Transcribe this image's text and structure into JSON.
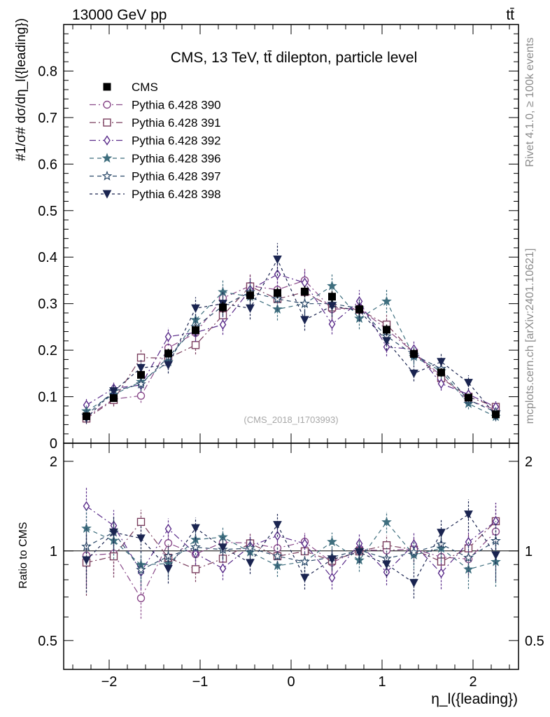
{
  "header": {
    "top_left": "13000 GeV pp",
    "top_right": "tt̄",
    "side_rivet": "Rivet 4.1.0, ≥ 100k events",
    "side_site": "mcplots.cern.ch [arXiv:2401.10621]"
  },
  "chart_data": {
    "type": "line",
    "title": "CMS, 13 TeV, tt̄ dilepton, particle level",
    "analysis_tag": "(CMS_2018_I1703993)",
    "xlabel": "η_l({leading})",
    "ylabel": "#1/σ# dσ/dη_l({leading})",
    "ratio_ylabel": "Ratio to CMS",
    "xlim": [
      -2.5,
      2.5
    ],
    "ylim": [
      0,
      0.9
    ],
    "ratio_ylim": [
      0.4,
      2.3
    ],
    "x_ticks": [
      -2,
      -1,
      0,
      1,
      2
    ],
    "x_tick_labels": [
      "−2",
      "−1",
      "0",
      "1",
      "2"
    ],
    "y_ticks": [
      0.1,
      0.2,
      0.3,
      0.4,
      0.5,
      0.6,
      0.7,
      0.8
    ],
    "y_tick_labels": [
      "0.1",
      "0.2",
      "0.3",
      "0.4",
      "0.5",
      "0.6",
      "0.7",
      "0.8"
    ],
    "y_zero_label": "0",
    "ratio_ticks": [
      0.5,
      1,
      2
    ],
    "ratio_tick_labels": [
      "0.5",
      "1",
      "2"
    ],
    "x": [
      -2.25,
      -1.95,
      -1.65,
      -1.35,
      -1.05,
      -0.75,
      -0.45,
      -0.15,
      0.15,
      0.45,
      0.75,
      1.05,
      1.35,
      1.65,
      1.95,
      2.25
    ],
    "data": {
      "name": "CMS",
      "values": [
        0.058,
        0.097,
        0.147,
        0.193,
        0.243,
        0.292,
        0.318,
        0.323,
        0.326,
        0.315,
        0.288,
        0.244,
        0.192,
        0.152,
        0.098,
        0.062
      ],
      "errors": [
        0.006,
        0.007,
        0.009,
        0.01,
        0.011,
        0.012,
        0.012,
        0.012,
        0.012,
        0.012,
        0.012,
        0.011,
        0.01,
        0.009,
        0.007,
        0.006
      ]
    },
    "series": [
      {
        "name": "Pythia 6.428 390",
        "color": "#8a4a8a",
        "marker": "circle-open",
        "dash": "9,4,2,4",
        "values": [
          0.056,
          0.095,
          0.102,
          0.205,
          0.237,
          0.312,
          0.338,
          0.33,
          0.35,
          0.288,
          0.29,
          0.245,
          0.195,
          0.145,
          0.092,
          0.072
        ],
        "errors": [
          0.012,
          0.014,
          0.015,
          0.018,
          0.02,
          0.024,
          0.025,
          0.025,
          0.025,
          0.024,
          0.023,
          0.02,
          0.018,
          0.015,
          0.012,
          0.011
        ]
      },
      {
        "name": "Pythia 6.428 391",
        "color": "#7a3e5e",
        "marker": "square-open",
        "dash": "9,4,2,4",
        "values": [
          0.053,
          0.093,
          0.184,
          0.183,
          0.211,
          0.275,
          0.337,
          0.31,
          0.325,
          0.292,
          0.287,
          0.255,
          0.194,
          0.14,
          0.1,
          0.078
        ],
        "errors": [
          0.012,
          0.014,
          0.018,
          0.018,
          0.02,
          0.023,
          0.025,
          0.025,
          0.025,
          0.024,
          0.023,
          0.021,
          0.018,
          0.015,
          0.012,
          0.012
        ]
      },
      {
        "name": "Pythia 6.428 392",
        "color": "#5a2c8a",
        "marker": "diamond-open",
        "dash": "9,4,2,4",
        "values": [
          0.082,
          0.118,
          0.125,
          0.229,
          0.238,
          0.255,
          0.33,
          0.363,
          0.345,
          0.256,
          0.305,
          0.207,
          0.202,
          0.128,
          0.105,
          0.078
        ],
        "errors": [
          0.013,
          0.015,
          0.016,
          0.019,
          0.02,
          0.022,
          0.025,
          0.027,
          0.025,
          0.022,
          0.024,
          0.02,
          0.018,
          0.015,
          0.013,
          0.012
        ]
      },
      {
        "name": "Pythia 6.428 396",
        "color": "#3e6e7e",
        "marker": "star-filled",
        "dash": "6,5",
        "values": [
          0.069,
          0.105,
          0.132,
          0.175,
          0.265,
          0.325,
          0.315,
          0.288,
          0.3,
          0.338,
          0.268,
          0.305,
          0.186,
          0.155,
          0.085,
          0.057
        ],
        "errors": [
          0.012,
          0.014,
          0.016,
          0.018,
          0.022,
          0.025,
          0.025,
          0.024,
          0.024,
          0.025,
          0.023,
          0.025,
          0.018,
          0.016,
          0.012,
          0.01
        ]
      },
      {
        "name": "Pythia 6.428 397",
        "color": "#2c4a6a",
        "marker": "star-open",
        "dash": "6,5",
        "values": [
          0.06,
          0.112,
          0.127,
          0.185,
          0.25,
          0.295,
          0.325,
          0.31,
          0.3,
          0.3,
          0.29,
          0.23,
          0.19,
          0.16,
          0.093,
          0.067
        ],
        "errors": [
          0.012,
          0.014,
          0.015,
          0.018,
          0.021,
          0.023,
          0.025,
          0.025,
          0.024,
          0.024,
          0.023,
          0.02,
          0.018,
          0.016,
          0.012,
          0.011
        ]
      },
      {
        "name": "Pythia 6.428 398",
        "color": "#1a2450",
        "marker": "tri-down-filled",
        "dash": "4,4",
        "values": [
          0.054,
          0.112,
          0.162,
          0.168,
          0.29,
          0.3,
          0.29,
          0.395,
          0.265,
          0.295,
          0.285,
          0.22,
          0.15,
          0.175,
          0.13,
          0.06
        ],
        "errors": [
          0.012,
          0.015,
          0.017,
          0.018,
          0.024,
          0.025,
          0.024,
          0.035,
          0.023,
          0.024,
          0.023,
          0.02,
          0.017,
          0.018,
          0.016,
          0.011
        ]
      }
    ],
    "legend_position": "top-left",
    "grid": false
  }
}
